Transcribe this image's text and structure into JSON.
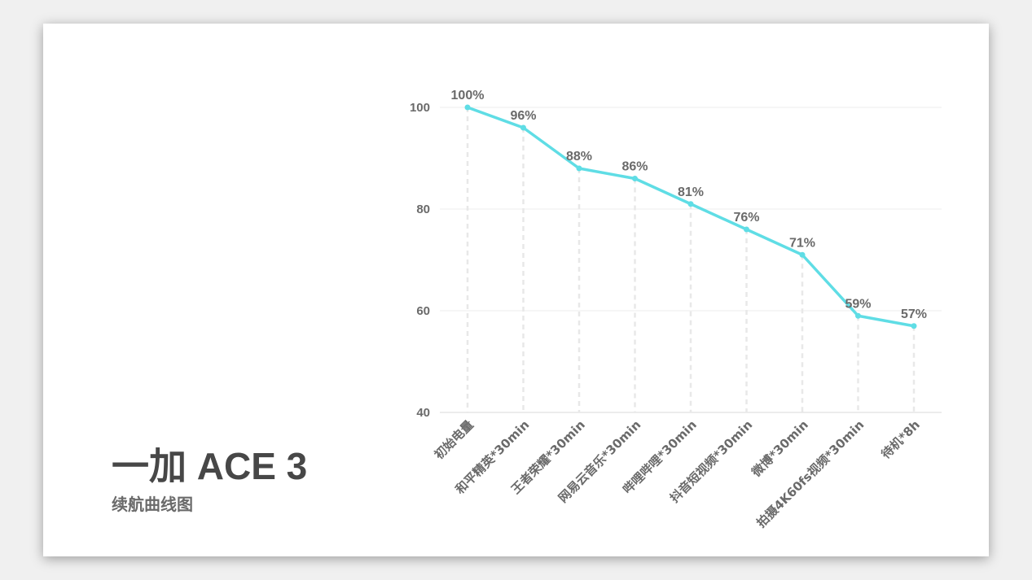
{
  "title": "一加 ACE 3",
  "subtitle": "续航曲线图",
  "colors": {
    "line": "#5fdde5",
    "grid": "#ececec",
    "drop": "#e8e8e8",
    "text": "#6a6a6a"
  },
  "chart_data": {
    "type": "line",
    "categories": [
      "初始电量",
      "和平精英*30min",
      "王者荣耀*30min",
      "网易云音乐*30min",
      "哔哩哔哩*30min",
      "抖音短视频*30min",
      "微博*30min",
      "拍摄4K60fs视频*30min",
      "待机*8h"
    ],
    "series": [
      {
        "values": [
          100,
          96,
          88,
          86,
          81,
          76,
          71,
          59,
          57
        ],
        "labels": [
          "100%",
          "96%",
          "88%",
          "86%",
          "81%",
          "76%",
          "71%",
          "59%",
          "57%"
        ]
      }
    ],
    "yticks": [
      100,
      80,
      60,
      40
    ],
    "ylim": [
      40,
      100
    ],
    "grid": true,
    "xlabel": "",
    "ylabel": ""
  }
}
